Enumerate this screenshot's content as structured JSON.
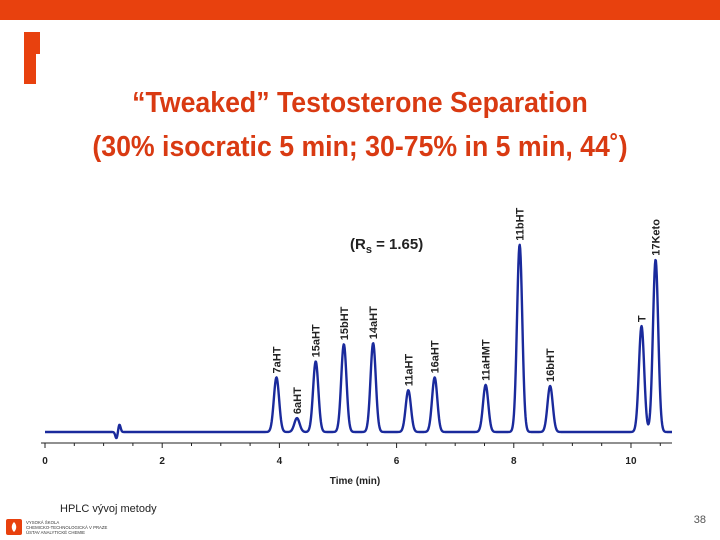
{
  "slide": {
    "title_line1": "“Tweaked” Testosterone Separation",
    "title_line2": "(30% isocratic 5 min; 30-75% in 5 min, 44˚)",
    "footer": "HPLC vývoj metody",
    "page_number": "38",
    "logo_lines": [
      "VYSOKÁ ŠKOLA",
      "CHEMICKO-TECHNOLOGICKÁ V PRAZE",
      "ÚSTAV ANALYTICKÉ CHEMIE"
    ]
  },
  "chart_data": {
    "type": "line",
    "title": "",
    "xlabel": "Time (min)",
    "ylabel": "",
    "xlim": [
      0,
      10.7
    ],
    "ylim": [
      0,
      1
    ],
    "x_ticks": [
      0,
      2,
      4,
      6,
      8,
      10
    ],
    "resolution_note": {
      "prefix": "(R",
      "subscript": "s",
      "suffix": " = 1.65)"
    },
    "line_color": "#1a2a9c",
    "injection_disturbance_time": 1.25,
    "peaks": [
      {
        "label": "7aHT",
        "time": 3.95,
        "height": 0.255
      },
      {
        "label": "6aHT",
        "time": 4.3,
        "height": 0.065
      },
      {
        "label": "15aHT",
        "time": 4.62,
        "height": 0.33
      },
      {
        "label": "15bHT",
        "time": 5.1,
        "height": 0.41
      },
      {
        "label": "14aHT",
        "time": 5.6,
        "height": 0.415
      },
      {
        "label": "11aHT",
        "time": 6.2,
        "height": 0.195
      },
      {
        "label": "16aHT",
        "time": 6.65,
        "height": 0.255
      },
      {
        "label": "11aHMT",
        "time": 7.52,
        "height": 0.22
      },
      {
        "label": "11bHT",
        "time": 8.1,
        "height": 0.875
      },
      {
        "label": "16bHT",
        "time": 8.62,
        "height": 0.215
      },
      {
        "label": "T",
        "time": 10.18,
        "height": 0.495
      },
      {
        "label": "17Keto",
        "time": 10.42,
        "height": 0.805
      }
    ]
  }
}
